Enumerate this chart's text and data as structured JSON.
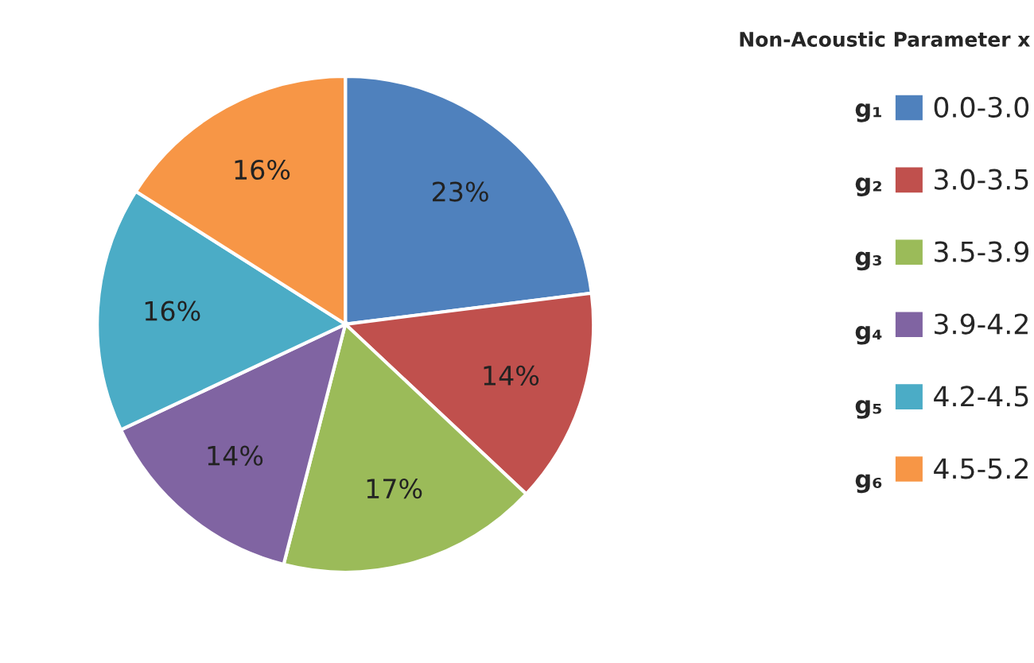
{
  "chart_data": {
    "type": "pie",
    "legend_title": "Non-Acoustic Parameter x",
    "categories": [
      "0.0-3.0",
      "3.0-3.5",
      "3.5-3.9",
      "3.9-4.2",
      "4.2-4.5",
      "4.5-5.2"
    ],
    "values": [
      23,
      14,
      17,
      14,
      16,
      16
    ],
    "colors": [
      "#4f81bd",
      "#c0504d",
      "#9bbb59",
      "#8064a2",
      "#4bacc6",
      "#f79646"
    ],
    "annotations": [
      "g₁",
      "g₂",
      "g₃",
      "g₄",
      "g₅",
      "g₆"
    ],
    "value_labels": [
      "23%",
      "14%",
      "17%",
      "14%",
      "16%",
      "16%"
    ],
    "legend": "right"
  }
}
